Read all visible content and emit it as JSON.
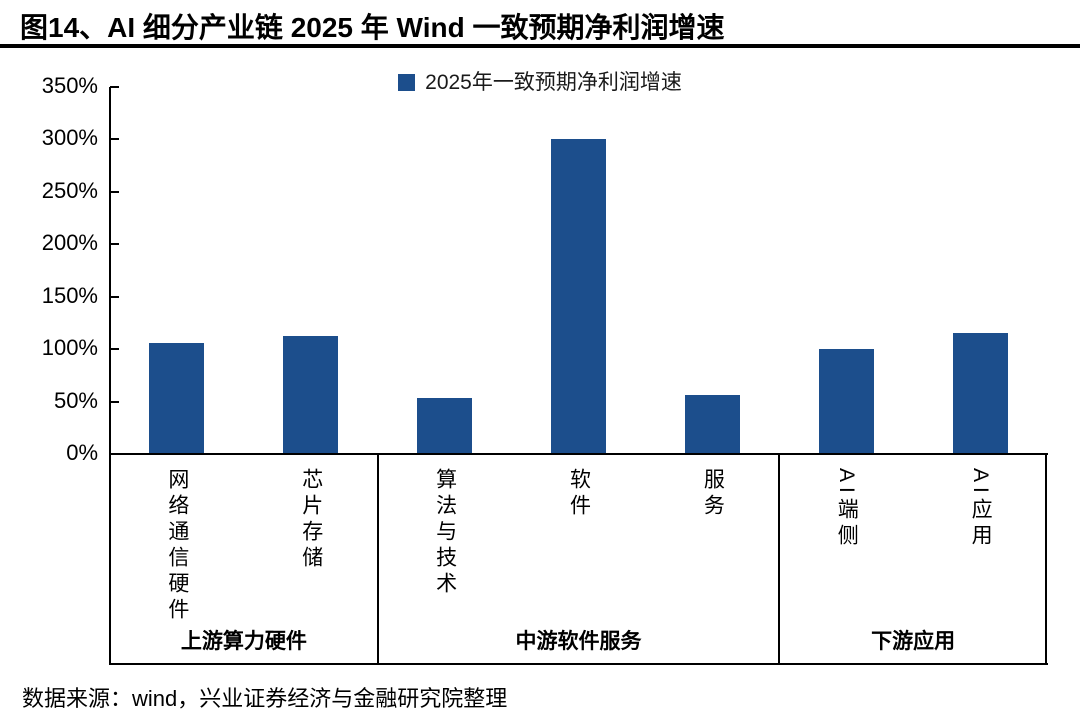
{
  "figure": {
    "title": "图14、AI 细分产业链 2025 年 Wind 一致预期净利润增速",
    "source": "数据来源：wind，兴业证券经济与金融研究院整理"
  },
  "chart_data": {
    "type": "bar",
    "title": "图14、AI 细分产业链 2025 年 Wind 一致预期净利润增速",
    "legend": [
      "2025年一致预期净利润增速"
    ],
    "legend_position": "top-center",
    "categories": [
      "网络通信硬件",
      "芯片存储",
      "算法与技术",
      "软件",
      "服务",
      "AI端侧",
      "AI应用"
    ],
    "values": [
      106,
      113,
      53,
      300,
      56,
      100,
      115
    ],
    "unit": "%",
    "groups": [
      {
        "label": "上游算力硬件",
        "span": [
          0,
          1
        ]
      },
      {
        "label": "中游软件服务",
        "span": [
          2,
          4
        ]
      },
      {
        "label": "下游应用",
        "span": [
          5,
          6
        ]
      }
    ],
    "ylim": [
      0,
      350
    ],
    "ytick_step": 50,
    "ytick_suffix": "%",
    "grid": false,
    "bar_color": "#1C4E8C",
    "axis_color": "#000000"
  }
}
